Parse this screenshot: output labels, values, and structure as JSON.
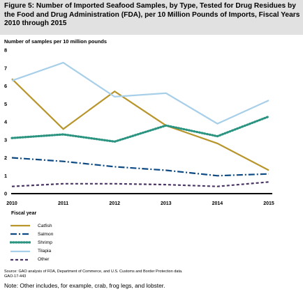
{
  "figure": {
    "title": "Figure 5: Number of Imported Seafood Samples, by Type, Tested for Drug Residues by the Food and Drug Administration (FDA), per 10 Million Pounds of Imports, Fiscal Years 2010 through 2015",
    "source": "Source: GAO analysis of FDA, Department of Commerce, and U.S. Customs and Border Protection data.",
    "report_id": "GAO-17-443",
    "note": "Note: Other includes, for example, crab, frog legs, and lobster."
  },
  "chart_data": {
    "type": "line",
    "ylabel": "Number of samples per 10 million pounds",
    "xlabel": "Fiscal year",
    "x": [
      "2010",
      "2011",
      "2012",
      "2013",
      "2014",
      "2015"
    ],
    "ylim": [
      0,
      8
    ],
    "yticks": [
      "0",
      "1",
      "2",
      "3",
      "4",
      "5",
      "6",
      "7",
      "8"
    ],
    "grid": false,
    "legend_position": "bottom-left",
    "series": [
      {
        "name": "Catfish",
        "values": [
          6.4,
          3.6,
          5.7,
          3.8,
          2.8,
          1.3
        ],
        "color": "#b8952a",
        "style": "solid"
      },
      {
        "name": "Salmon",
        "values": [
          2.0,
          1.8,
          1.5,
          1.3,
          1.0,
          1.1
        ],
        "color": "#0d4a84",
        "style": "dashdot"
      },
      {
        "name": "Shrimp",
        "values": [
          3.1,
          3.3,
          2.9,
          3.8,
          3.2,
          4.3
        ],
        "color": "#2a9480",
        "style": "dotted"
      },
      {
        "name": "Tilapia",
        "values": [
          6.3,
          7.3,
          5.4,
          5.6,
          3.9,
          5.2
        ],
        "color": "#a7cfe9",
        "style": "solid"
      },
      {
        "name": "Other",
        "values": [
          0.4,
          0.55,
          0.55,
          0.5,
          0.4,
          0.65
        ],
        "color": "#4a3463",
        "style": "dashed"
      }
    ]
  }
}
